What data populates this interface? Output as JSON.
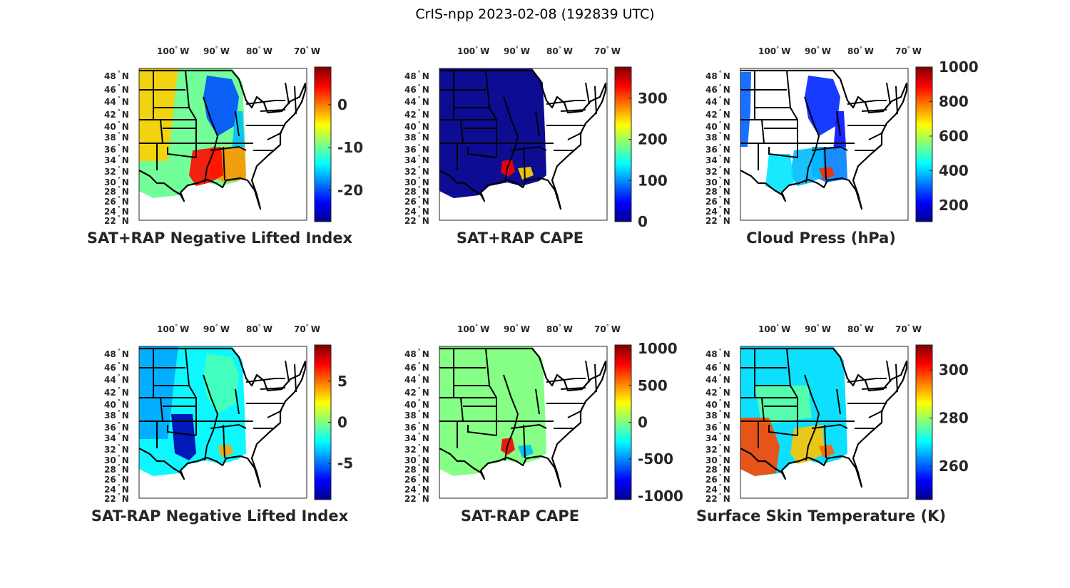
{
  "figure_title": "CrIS-npp 2023-02-08 (192839 UTC)",
  "lon_ticks": [
    "100",
    "90",
    "80",
    "70"
  ],
  "lon_suffix": "W",
  "lat_ticks": [
    "48",
    "46",
    "44",
    "42",
    "40",
    "38",
    "36",
    "34",
    "32",
    "30",
    "28",
    "26",
    "24",
    "22"
  ],
  "lat_suffix": "N",
  "degree_symbol": "°",
  "colormap": "jet",
  "panels": [
    {
      "title": "SAT+RAP Negative Lifted Index",
      "clim": [
        -27.3,
        8.8
      ],
      "colorbar_ticks": [
        {
          "value": 0,
          "label": "0"
        },
        {
          "value": -10,
          "label": "-10"
        },
        {
          "value": -20,
          "label": "-20"
        }
      ],
      "swath": -10,
      "regions": [
        {
          "region": "far-west",
          "value": -3
        },
        {
          "region": "midwest",
          "value": -20
        },
        {
          "region": "ohio-valley",
          "value": -16
        },
        {
          "region": "southeast",
          "value": -1
        },
        {
          "region": "lower-mississippi",
          "value": 4
        }
      ]
    },
    {
      "title": "SAT+RAP CAPE",
      "clim": [
        0,
        376
      ],
      "colorbar_ticks": [
        {
          "value": 300,
          "label": "300"
        },
        {
          "value": 200,
          "label": "200"
        },
        {
          "value": 100,
          "label": "100"
        },
        {
          "value": 0,
          "label": "0"
        }
      ],
      "swath": 5,
      "regions": [
        {
          "region": "lower-mississippi-small",
          "value": 330
        },
        {
          "region": "gulf-coast-small",
          "value": 250
        }
      ]
    },
    {
      "title": "Cloud Press (hPa)",
      "clim": [
        105,
        1000
      ],
      "colorbar_ticks": [
        {
          "value": 1000,
          "label": "1000"
        },
        {
          "value": 800,
          "label": "800"
        },
        {
          "value": 600,
          "label": "600"
        },
        {
          "value": 400,
          "label": "400"
        },
        {
          "value": 200,
          "label": "200"
        }
      ],
      "swath": null,
      "regions": [
        {
          "region": "midwest",
          "value": 250
        },
        {
          "region": "ohio-valley",
          "value": 230
        },
        {
          "region": "far-west-strip",
          "value": 300
        },
        {
          "region": "southeast",
          "value": 330
        },
        {
          "region": "lower-mississippi",
          "value": 380
        },
        {
          "region": "texas-streaks",
          "value": 420
        },
        {
          "region": "gulf-coast-small",
          "value": 850
        }
      ]
    },
    {
      "title": "SAT-RAP Negative Lifted Index",
      "clim": [
        -9.4,
        9.4
      ],
      "colorbar_ticks": [
        {
          "value": 5,
          "label": "5"
        },
        {
          "value": 0,
          "label": "0"
        },
        {
          "value": -5,
          "label": "-5"
        }
      ],
      "swath": -2.5,
      "regions": [
        {
          "region": "far-west",
          "value": -4
        },
        {
          "region": "midwest",
          "value": -1
        },
        {
          "region": "texas-dots",
          "value": -8.5
        },
        {
          "region": "gulf-coast-small",
          "value": 4
        }
      ]
    },
    {
      "title": "SAT-RAP CAPE",
      "clim": [
        -1050,
        1050
      ],
      "colorbar_ticks": [
        {
          "value": 1000,
          "label": "1000"
        },
        {
          "value": 500,
          "label": "500"
        },
        {
          "value": 0,
          "label": "0"
        },
        {
          "value": -500,
          "label": "-500"
        },
        {
          "value": -1000,
          "label": "-1000"
        }
      ],
      "swath": 0,
      "regions": [
        {
          "region": "lower-mississippi-small",
          "value": 800
        },
        {
          "region": "gulf-coast-small",
          "value": -400
        }
      ]
    },
    {
      "title": "Surface Skin Temperature (K)",
      "clim": [
        246,
        310.4
      ],
      "colorbar_ticks": [
        {
          "value": 300,
          "label": "300"
        },
        {
          "value": 280,
          "label": "280"
        },
        {
          "value": 260,
          "label": "260"
        }
      ],
      "swath": 268,
      "regions": [
        {
          "region": "plains",
          "value": 276
        },
        {
          "region": "south-texas",
          "value": 298
        },
        {
          "region": "lower-mississippi",
          "value": 290
        },
        {
          "region": "gulf-coast-small",
          "value": 296
        }
      ]
    }
  ]
}
